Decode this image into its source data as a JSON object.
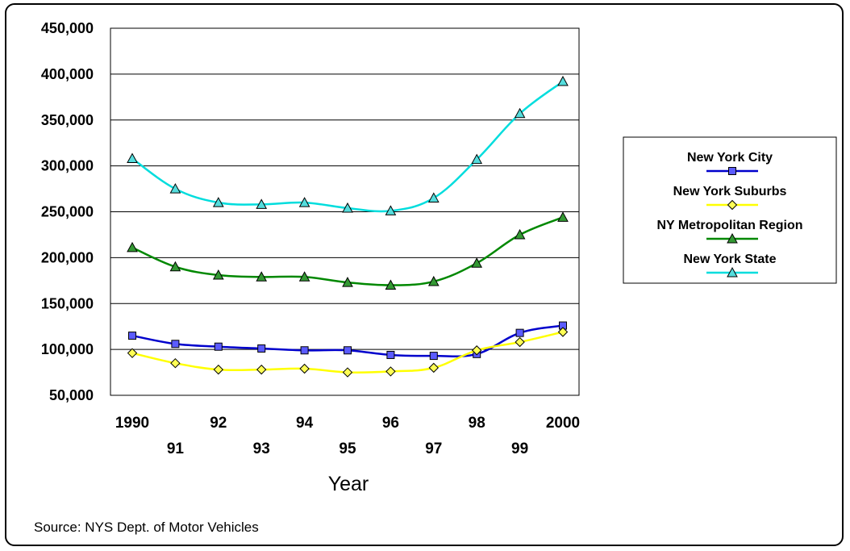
{
  "chart_data": {
    "type": "line",
    "xlabel": "Year",
    "ylabel": "",
    "ylim": [
      50000,
      450000
    ],
    "yticks": [
      "450,000",
      "400,000",
      "350,000",
      "300,000",
      "250,000",
      "200,000",
      "150,000",
      "100,000",
      "50,000"
    ],
    "x": [
      "1990",
      "91",
      "92",
      "93",
      "94",
      "95",
      "96",
      "97",
      "98",
      "99",
      "2000"
    ],
    "series": [
      {
        "name": "New York City",
        "color": "#0000cc",
        "marker": "square",
        "marker_fill": "#5b5bff",
        "values": [
          115000,
          106000,
          103000,
          101000,
          99000,
          99000,
          94000,
          93000,
          95000,
          118000,
          126000
        ]
      },
      {
        "name": "New York Suburbs",
        "color": "#ffff00",
        "marker": "diamond",
        "marker_fill": "#ffff55",
        "values": [
          96000,
          85000,
          78000,
          78000,
          79000,
          75000,
          76000,
          80000,
          99000,
          108000,
          119000
        ]
      },
      {
        "name": "NY Metropolitan Region",
        "color": "#008800",
        "marker": "triangle",
        "marker_fill": "#339933",
        "values": [
          211000,
          190000,
          181000,
          179000,
          179000,
          173000,
          170000,
          174000,
          194000,
          225000,
          244000
        ]
      },
      {
        "name": "New York State",
        "color": "#00dddd",
        "marker": "triangle",
        "marker_fill": "#55dddd",
        "values": [
          308000,
          275000,
          260000,
          258000,
          260000,
          254000,
          251000,
          265000,
          307000,
          357000,
          392000
        ]
      }
    ],
    "grid": true,
    "legend_position": "right"
  },
  "source": "Source: NYS Dept. of Motor Vehicles"
}
